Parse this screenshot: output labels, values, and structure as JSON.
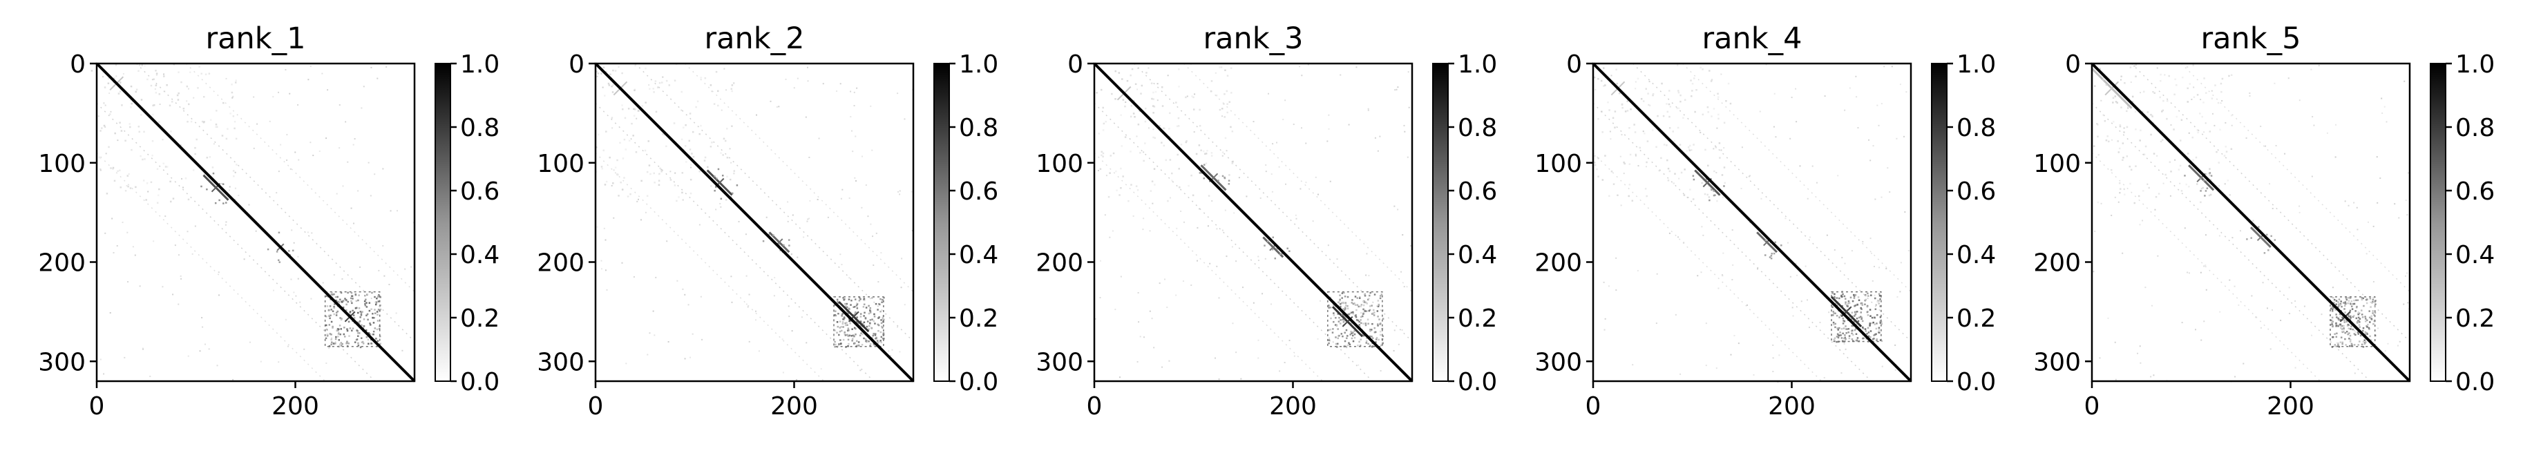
{
  "chart_data": [
    {
      "type": "heatmap",
      "title": "rank_1",
      "xlim": [
        0,
        320
      ],
      "ylim": [
        320,
        0
      ],
      "x_ticks": [
        0,
        200
      ],
      "x_tick_labels": [
        "0",
        "200"
      ],
      "y_ticks": [
        0,
        100,
        200,
        300
      ],
      "y_tick_labels": [
        "0",
        "100",
        "200",
        "300"
      ],
      "colormap": "Greys",
      "colorbar": {
        "range": [
          0.0,
          1.0
        ],
        "ticks": [
          0.0,
          0.2,
          0.4,
          0.6,
          0.8,
          1.0
        ],
        "tick_labels": [
          "0.0",
          "0.2",
          "0.4",
          "0.6",
          "0.8",
          "1.0"
        ]
      },
      "grid": false,
      "features": {
        "diagonal": {
          "from": 0,
          "to": 320,
          "value": 1.0
        },
        "dense_blocks": [
          {
            "x": [
              230,
              285
            ],
            "y": [
              230,
              285
            ],
            "value": 0.6
          },
          {
            "x": [
              0,
              140
            ],
            "y": [
              0,
              140
            ],
            "value": 0.15
          }
        ],
        "off_diagonal_streaks": [
          {
            "center": [
              20,
              20
            ],
            "length": 40,
            "value": 0.25
          },
          {
            "center": [
              120,
              125
            ],
            "length": 25,
            "value": 0.7
          },
          {
            "center": [
              185,
              185
            ],
            "length": 20,
            "value": 0.6
          },
          {
            "center": [
              255,
              255
            ],
            "length": 30,
            "value": 0.8
          }
        ]
      }
    },
    {
      "type": "heatmap",
      "title": "rank_2",
      "xlim": [
        0,
        320
      ],
      "ylim": [
        320,
        0
      ],
      "x_ticks": [
        0,
        200
      ],
      "x_tick_labels": [
        "0",
        "200"
      ],
      "y_ticks": [
        0,
        100,
        200,
        300
      ],
      "y_tick_labels": [
        "0",
        "100",
        "200",
        "300"
      ],
      "colormap": "Greys",
      "colorbar": {
        "range": [
          0.0,
          1.0
        ],
        "ticks": [
          0.0,
          0.2,
          0.4,
          0.6,
          0.8,
          1.0
        ],
        "tick_labels": [
          "0.0",
          "0.2",
          "0.4",
          "0.6",
          "0.8",
          "1.0"
        ]
      },
      "grid": false,
      "features": {
        "diagonal": {
          "from": 0,
          "to": 320,
          "value": 1.0
        },
        "dense_blocks": [
          {
            "x": [
              240,
              290
            ],
            "y": [
              235,
              285
            ],
            "value": 0.6
          },
          {
            "x": [
              0,
              140
            ],
            "y": [
              0,
              140
            ],
            "value": 0.15
          }
        ],
        "off_diagonal_streaks": [
          {
            "center": [
              25,
              25
            ],
            "length": 40,
            "value": 0.25
          },
          {
            "center": [
              125,
              120
            ],
            "length": 25,
            "value": 0.7
          },
          {
            "center": [
              185,
              180
            ],
            "length": 20,
            "value": 0.6
          },
          {
            "center": [
              260,
              255
            ],
            "length": 30,
            "value": 0.8
          }
        ]
      }
    },
    {
      "type": "heatmap",
      "title": "rank_3",
      "xlim": [
        0,
        320
      ],
      "ylim": [
        320,
        0
      ],
      "x_ticks": [
        0,
        200
      ],
      "x_tick_labels": [
        "0",
        "200"
      ],
      "y_ticks": [
        0,
        100,
        200,
        300
      ],
      "y_tick_labels": [
        "0",
        "100",
        "200",
        "300"
      ],
      "colormap": "Greys",
      "colorbar": {
        "range": [
          0.0,
          1.0
        ],
        "ticks": [
          0.0,
          0.2,
          0.4,
          0.6,
          0.8,
          1.0
        ],
        "tick_labels": [
          "0.0",
          "0.2",
          "0.4",
          "0.6",
          "0.8",
          "1.0"
        ]
      },
      "grid": false,
      "features": {
        "diagonal": {
          "from": 0,
          "to": 320,
          "value": 1.0
        },
        "dense_blocks": [
          {
            "x": [
              235,
              290
            ],
            "y": [
              230,
              285
            ],
            "value": 0.55
          },
          {
            "x": [
              0,
              140
            ],
            "y": [
              0,
              140
            ],
            "value": 0.15
          }
        ],
        "off_diagonal_streaks": [
          {
            "center": [
              30,
              30
            ],
            "length": 40,
            "value": 0.25
          },
          {
            "center": [
              120,
              115
            ],
            "length": 25,
            "value": 0.6
          },
          {
            "center": [
              180,
              185
            ],
            "length": 20,
            "value": 0.6
          },
          {
            "center": [
              255,
              260
            ],
            "length": 30,
            "value": 0.8
          }
        ]
      }
    },
    {
      "type": "heatmap",
      "title": "rank_4",
      "xlim": [
        0,
        320
      ],
      "ylim": [
        320,
        0
      ],
      "x_ticks": [
        0,
        200
      ],
      "x_tick_labels": [
        "0",
        "200"
      ],
      "y_ticks": [
        0,
        100,
        200,
        300
      ],
      "y_tick_labels": [
        "0",
        "100",
        "200",
        "300"
      ],
      "colormap": "Greys",
      "colorbar": {
        "range": [
          0.0,
          1.0
        ],
        "ticks": [
          0.0,
          0.2,
          0.4,
          0.6,
          0.8,
          1.0
        ],
        "tick_labels": [
          "0.0",
          "0.2",
          "0.4",
          "0.6",
          "0.8",
          "1.0"
        ]
      },
      "grid": false,
      "features": {
        "diagonal": {
          "from": 0,
          "to": 320,
          "value": 1.0
        },
        "dense_blocks": [
          {
            "x": [
              240,
              290
            ],
            "y": [
              230,
              280
            ],
            "value": 0.6
          },
          {
            "x": [
              0,
              140
            ],
            "y": [
              0,
              140
            ],
            "value": 0.15
          }
        ],
        "off_diagonal_streaks": [
          {
            "center": [
              25,
              25
            ],
            "length": 40,
            "value": 0.25
          },
          {
            "center": [
              115,
              120
            ],
            "length": 25,
            "value": 0.65
          },
          {
            "center": [
              175,
              180
            ],
            "length": 20,
            "value": 0.6
          },
          {
            "center": [
              255,
              250
            ],
            "length": 30,
            "value": 0.8
          }
        ]
      }
    },
    {
      "type": "heatmap",
      "title": "rank_5",
      "xlim": [
        0,
        320
      ],
      "ylim": [
        320,
        0
      ],
      "x_ticks": [
        0,
        200
      ],
      "x_tick_labels": [
        "0",
        "200"
      ],
      "y_ticks": [
        0,
        100,
        200,
        300
      ],
      "y_tick_labels": [
        "0",
        "100",
        "200",
        "300"
      ],
      "colormap": "Greys",
      "colorbar": {
        "range": [
          0.0,
          1.0
        ],
        "ticks": [
          0.0,
          0.2,
          0.4,
          0.6,
          0.8,
          1.0
        ],
        "tick_labels": [
          "0.0",
          "0.2",
          "0.4",
          "0.6",
          "0.8",
          "1.0"
        ]
      },
      "grid": false,
      "features": {
        "diagonal": {
          "from": 0,
          "to": 320,
          "value": 1.0
        },
        "dense_blocks": [
          {
            "x": [
              240,
              285
            ],
            "y": [
              235,
              285
            ],
            "value": 0.55
          },
          {
            "x": [
              0,
              140
            ],
            "y": [
              0,
              140
            ],
            "value": 0.15
          }
        ],
        "off_diagonal_streaks": [
          {
            "center": [
              20,
              25
            ],
            "length": 40,
            "value": 0.25
          },
          {
            "center": [
              110,
              115
            ],
            "length": 25,
            "value": 0.6
          },
          {
            "center": [
              170,
              175
            ],
            "length": 20,
            "value": 0.55
          },
          {
            "center": [
              255,
              255
            ],
            "length": 30,
            "value": 0.8
          }
        ]
      }
    }
  ]
}
